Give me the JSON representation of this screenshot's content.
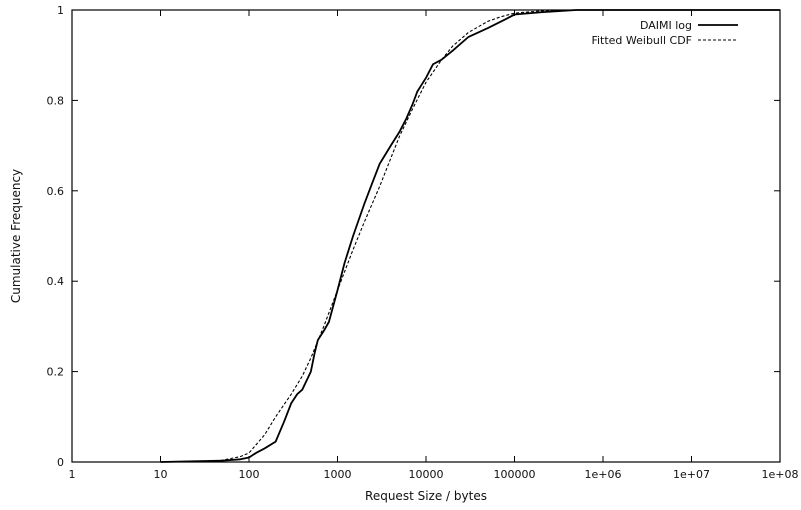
{
  "chart_data": {
    "type": "line",
    "xscale": "log",
    "xlabel": "Request Size / bytes",
    "ylabel": "Cumulative Frequency",
    "xlim": [
      1,
      100000000
    ],
    "ylim": [
      0,
      1
    ],
    "x_ticks": [
      1,
      10,
      100,
      1000,
      10000,
      100000,
      1000000,
      10000000,
      100000000
    ],
    "x_tick_labels": [
      "1",
      "10",
      "100",
      "1000",
      "10000",
      "100000",
      "1e+06",
      "1e+07",
      "1e+08"
    ],
    "y_ticks": [
      0,
      0.2,
      0.4,
      0.6,
      0.8,
      1
    ],
    "y_tick_labels": [
      "0",
      "0.2",
      "0.4",
      "0.6",
      "0.8",
      "1"
    ],
    "grid": false,
    "legend_position": "top-right",
    "series": [
      {
        "name": "DAIMI log",
        "style": "solid",
        "x": [
          10,
          50,
          80,
          100,
          120,
          150,
          200,
          250,
          300,
          350,
          400,
          500,
          550,
          600,
          700,
          800,
          1000,
          1200,
          1500,
          2000,
          2500,
          3000,
          4000,
          5000,
          6000,
          7000,
          8000,
          10000,
          12000,
          15000,
          20000,
          30000,
          50000,
          80000,
          100000,
          200000,
          500000,
          1000000,
          10000000,
          100000000
        ],
        "y": [
          0,
          0.003,
          0.006,
          0.01,
          0.02,
          0.03,
          0.045,
          0.09,
          0.13,
          0.15,
          0.16,
          0.2,
          0.24,
          0.27,
          0.29,
          0.31,
          0.38,
          0.44,
          0.5,
          0.57,
          0.62,
          0.66,
          0.7,
          0.73,
          0.76,
          0.79,
          0.82,
          0.85,
          0.88,
          0.89,
          0.91,
          0.94,
          0.96,
          0.98,
          0.99,
          0.995,
          1,
          1,
          1,
          1
        ]
      },
      {
        "name": "Fitted Weibull CDF",
        "style": "dashed",
        "x": [
          10,
          30,
          50,
          80,
          100,
          150,
          200,
          300,
          400,
          500,
          700,
          1000,
          1500,
          2000,
          3000,
          5000,
          7000,
          10000,
          15000,
          20000,
          30000,
          50000,
          70000,
          100000,
          200000,
          500000,
          1000000,
          10000000,
          100000000
        ],
        "y": [
          0,
          0.001,
          0.004,
          0.012,
          0.02,
          0.06,
          0.1,
          0.15,
          0.19,
          0.23,
          0.3,
          0.38,
          0.47,
          0.53,
          0.61,
          0.72,
          0.78,
          0.84,
          0.89,
          0.92,
          0.95,
          0.975,
          0.985,
          0.993,
          0.998,
          1,
          1,
          1,
          1
        ]
      }
    ]
  }
}
